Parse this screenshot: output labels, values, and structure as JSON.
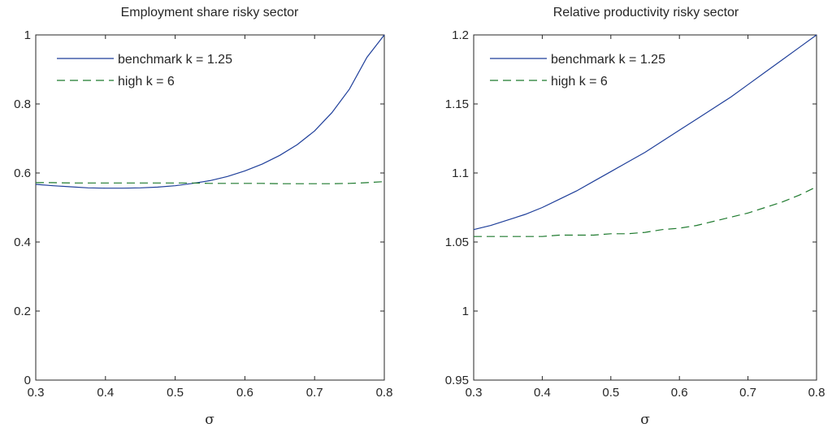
{
  "chart_data": [
    {
      "type": "line",
      "title": "Employment share risky sector",
      "xlabel": "σ",
      "ylabel": "",
      "xlim": [
        0.3,
        0.8
      ],
      "ylim": [
        0,
        1
      ],
      "xticks": [
        "0.3",
        "0.4",
        "0.5",
        "0.6",
        "0.7",
        "0.8"
      ],
      "yticks": [
        "0",
        "0.2",
        "0.4",
        "0.6",
        "0.8",
        "1"
      ],
      "grid": false,
      "legend_position": "top-left",
      "x": [
        0.3,
        0.325,
        0.35,
        0.375,
        0.4,
        0.425,
        0.45,
        0.475,
        0.5,
        0.525,
        0.55,
        0.575,
        0.6,
        0.625,
        0.65,
        0.675,
        0.7,
        0.725,
        0.75,
        0.775,
        0.8
      ],
      "series": [
        {
          "name": "benchmark k = 1.25",
          "color": "#1f3f9a",
          "style": "solid",
          "values": [
            0.567,
            0.563,
            0.56,
            0.557,
            0.556,
            0.556,
            0.557,
            0.559,
            0.563,
            0.57,
            0.578,
            0.59,
            0.606,
            0.626,
            0.651,
            0.682,
            0.722,
            0.775,
            0.843,
            0.935,
            1.0
          ]
        },
        {
          "name": "high k = 6",
          "color": "#1e7a2e",
          "style": "dashed",
          "values": [
            0.572,
            0.572,
            0.571,
            0.571,
            0.571,
            0.571,
            0.571,
            0.571,
            0.571,
            0.571,
            0.57,
            0.57,
            0.57,
            0.57,
            0.569,
            0.569,
            0.569,
            0.569,
            0.57,
            0.572,
            0.575
          ]
        }
      ]
    },
    {
      "type": "line",
      "title": "Relative productivity risky sector",
      "xlabel": "σ",
      "ylabel": "",
      "xlim": [
        0.3,
        0.8
      ],
      "ylim": [
        0.95,
        1.2
      ],
      "xticks": [
        "0.3",
        "0.4",
        "0.5",
        "0.6",
        "0.7",
        "0.8"
      ],
      "yticks": [
        "0.95",
        "1",
        "1.05",
        "1.1",
        "1.15",
        "1.2"
      ],
      "grid": false,
      "legend_position": "top-left",
      "x": [
        0.3,
        0.325,
        0.35,
        0.375,
        0.4,
        0.425,
        0.45,
        0.475,
        0.5,
        0.525,
        0.55,
        0.575,
        0.6,
        0.625,
        0.65,
        0.675,
        0.7,
        0.725,
        0.75,
        0.775,
        0.8
      ],
      "series": [
        {
          "name": "benchmark k = 1.25",
          "color": "#1f3f9a",
          "style": "solid",
          "values": [
            1.059,
            1.062,
            1.066,
            1.07,
            1.075,
            1.081,
            1.087,
            1.094,
            1.101,
            1.108,
            1.115,
            1.123,
            1.131,
            1.139,
            1.147,
            1.155,
            1.164,
            1.173,
            1.182,
            1.191,
            1.2
          ]
        },
        {
          "name": "high k = 6",
          "color": "#1e7a2e",
          "style": "dashed",
          "values": [
            1.054,
            1.054,
            1.054,
            1.054,
            1.054,
            1.055,
            1.055,
            1.055,
            1.056,
            1.056,
            1.057,
            1.059,
            1.06,
            1.062,
            1.065,
            1.068,
            1.071,
            1.075,
            1.079,
            1.084,
            1.09
          ]
        }
      ]
    }
  ]
}
